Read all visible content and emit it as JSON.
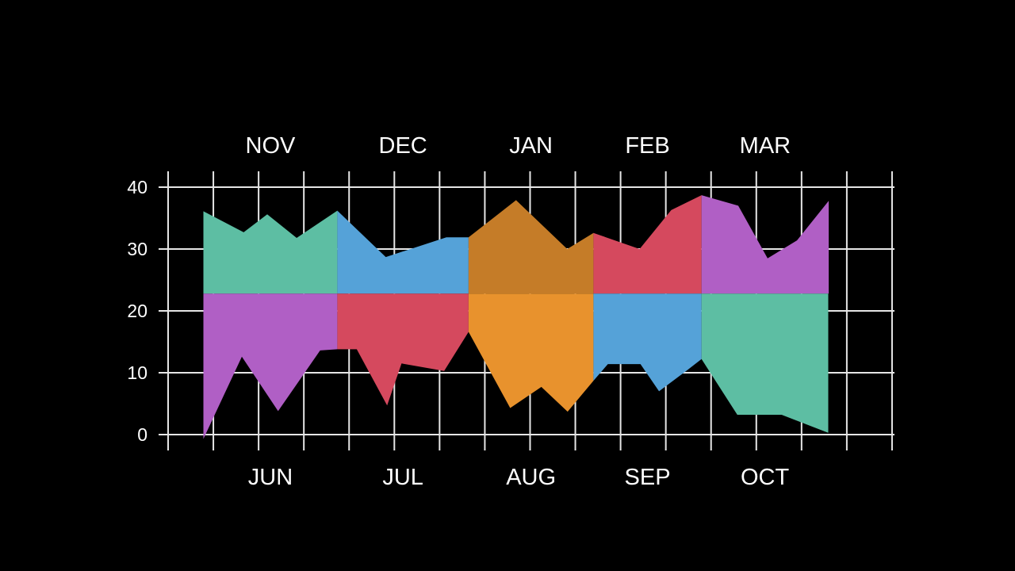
{
  "chart_data": {
    "type": "area",
    "grid": true,
    "baseline": 22.8,
    "ylim": [
      0,
      40
    ],
    "yticks": [
      "0",
      "10",
      "20",
      "30",
      "40"
    ],
    "xlim": [
      0,
      16
    ],
    "top_labels": [
      "NOV",
      "DEC",
      "JAN",
      "FEB",
      "MAR"
    ],
    "bottom_labels": [
      "JUN",
      "JUL",
      "AUG",
      "SEP",
      "OCT"
    ],
    "top_series": [
      {
        "label": "NOV",
        "color": "#5dbea3",
        "points": [
          [
            0.78,
            36.1
          ],
          [
            1.67,
            32.7
          ],
          [
            2.19,
            35.6
          ],
          [
            2.84,
            31.8
          ],
          [
            3.74,
            36.2
          ]
        ]
      },
      {
        "label": "DEC",
        "color": "#55a2d8",
        "points": [
          [
            3.74,
            36.2
          ],
          [
            4.81,
            28.7
          ],
          [
            5.4,
            30.1
          ],
          [
            6.15,
            31.9
          ],
          [
            6.64,
            31.9
          ]
        ]
      },
      {
        "label": "JAN",
        "color": "#c57c28",
        "points": [
          [
            6.64,
            31.9
          ],
          [
            7.69,
            37.9
          ],
          [
            8.82,
            30.0
          ],
          [
            9.4,
            32.6
          ]
        ]
      },
      {
        "label": "FEB",
        "color": "#d5495e",
        "points": [
          [
            9.4,
            32.6
          ],
          [
            10.42,
            30.0
          ],
          [
            11.12,
            36.3
          ],
          [
            11.79,
            38.7
          ]
        ]
      },
      {
        "label": "MAR",
        "color": "#b05fc5",
        "points": [
          [
            11.79,
            38.7
          ],
          [
            12.6,
            37.0
          ],
          [
            13.25,
            28.5
          ],
          [
            13.9,
            31.4
          ],
          [
            14.6,
            37.8
          ]
        ]
      }
    ],
    "bottom_series": [
      {
        "label": "JUN",
        "color": "#b05fc5",
        "points": [
          [
            0.78,
            -0.7
          ],
          [
            1.63,
            12.6
          ],
          [
            2.43,
            3.8
          ],
          [
            3.36,
            13.6
          ],
          [
            3.74,
            13.8
          ]
        ]
      },
      {
        "label": "JUL",
        "color": "#d5495e",
        "points": [
          [
            3.74,
            13.8
          ],
          [
            4.17,
            13.8
          ],
          [
            4.84,
            4.7
          ],
          [
            5.16,
            11.5
          ],
          [
            6.1,
            10.3
          ],
          [
            6.64,
            16.6
          ]
        ]
      },
      {
        "label": "AUG",
        "color": "#e8922d",
        "points": [
          [
            6.64,
            16.6
          ],
          [
            7.56,
            4.3
          ],
          [
            8.25,
            7.7
          ],
          [
            8.83,
            3.7
          ],
          [
            9.4,
            8.7
          ]
        ]
      },
      {
        "label": "SEP",
        "color": "#55a2d8",
        "points": [
          [
            9.4,
            8.7
          ],
          [
            9.72,
            11.4
          ],
          [
            10.44,
            11.4
          ],
          [
            10.85,
            7.0
          ],
          [
            11.47,
            10.4
          ],
          [
            11.79,
            12.2
          ]
        ]
      },
      {
        "label": "OCT",
        "color": "#5dbea3",
        "points": [
          [
            11.79,
            12.2
          ],
          [
            12.58,
            3.2
          ],
          [
            13.56,
            3.2
          ],
          [
            14.59,
            0.3
          ]
        ]
      }
    ]
  }
}
